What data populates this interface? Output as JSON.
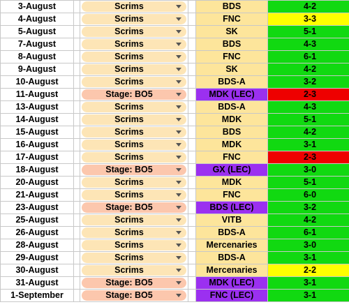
{
  "colors": {
    "opp_default": "#fde59b",
    "opp_lec": "#9b30f0",
    "score_win": "#11d911",
    "score_draw": "#ffff00",
    "score_loss": "#ee0000",
    "chip_scrims": "#fde5b6",
    "chip_stage": "#fcc7ad"
  },
  "rows": [
    {
      "date": "3-August",
      "type": "Scrims",
      "opponent": "BDS",
      "score": "4-2",
      "result": "win"
    },
    {
      "date": "4-August",
      "type": "Scrims",
      "opponent": "FNC",
      "score": "3-3",
      "result": "draw"
    },
    {
      "date": "5-August",
      "type": "Scrims",
      "opponent": "SK",
      "score": "5-1",
      "result": "win"
    },
    {
      "date": "7-August",
      "type": "Scrims",
      "opponent": "BDS",
      "score": "4-3",
      "result": "win"
    },
    {
      "date": "8-August",
      "type": "Scrims",
      "opponent": "FNC",
      "score": "6-1",
      "result": "win"
    },
    {
      "date": "9-August",
      "type": "Scrims",
      "opponent": "SK",
      "score": "4-2",
      "result": "win"
    },
    {
      "date": "10-August",
      "type": "Scrims",
      "opponent": "BDS-A",
      "score": "3-2",
      "result": "win"
    },
    {
      "date": "11-August",
      "type": "Stage: BO5",
      "opponent": "MDK (LEC)",
      "score": "2-3",
      "result": "loss",
      "lec": true
    },
    {
      "date": "13-August",
      "type": "Scrims",
      "opponent": "BDS-A",
      "score": "4-3",
      "result": "win"
    },
    {
      "date": "14-August",
      "type": "Scrims",
      "opponent": "MDK",
      "score": "5-1",
      "result": "win"
    },
    {
      "date": "15-August",
      "type": "Scrims",
      "opponent": "BDS",
      "score": "4-2",
      "result": "win"
    },
    {
      "date": "16-August",
      "type": "Scrims",
      "opponent": "MDK",
      "score": "3-1",
      "result": "win"
    },
    {
      "date": "17-August",
      "type": "Scrims",
      "opponent": "FNC",
      "score": "2-3",
      "result": "loss"
    },
    {
      "date": "18-August",
      "type": "Stage: BO5",
      "opponent": "GX (LEC)",
      "score": "3-0",
      "result": "win",
      "lec": true
    },
    {
      "date": "20-August",
      "type": "Scrims",
      "opponent": "MDK",
      "score": "5-1",
      "result": "win"
    },
    {
      "date": "21-August",
      "type": "Scrims",
      "opponent": "FNC",
      "score": "6-0",
      "result": "win"
    },
    {
      "date": "23-August",
      "type": "Stage: BO5",
      "opponent": "BDS (LEC)",
      "score": "3-2",
      "result": "win",
      "lec": true
    },
    {
      "date": "25-August",
      "type": "Scrims",
      "opponent": "VITB",
      "score": "4-2",
      "result": "win"
    },
    {
      "date": "26-August",
      "type": "Scrims",
      "opponent": "BDS-A",
      "score": "6-1",
      "result": "win"
    },
    {
      "date": "28-August",
      "type": "Scrims",
      "opponent": "Mercenaries",
      "score": "3-0",
      "result": "win"
    },
    {
      "date": "29-August",
      "type": "Scrims",
      "opponent": "BDS-A",
      "score": "3-1",
      "result": "win"
    },
    {
      "date": "30-August",
      "type": "Scrims",
      "opponent": "Mercenaries",
      "score": "2-2",
      "result": "draw"
    },
    {
      "date": "31-August",
      "type": "Stage: BO5",
      "opponent": "MDK (LEC)",
      "score": "3-1",
      "result": "win",
      "lec": true
    },
    {
      "date": "1-September",
      "type": "Stage: BO5",
      "opponent": "FNC (LEC)",
      "score": "3-1",
      "result": "win",
      "lec": true
    }
  ],
  "icons": {
    "dropdown": "chevron-down-icon"
  }
}
